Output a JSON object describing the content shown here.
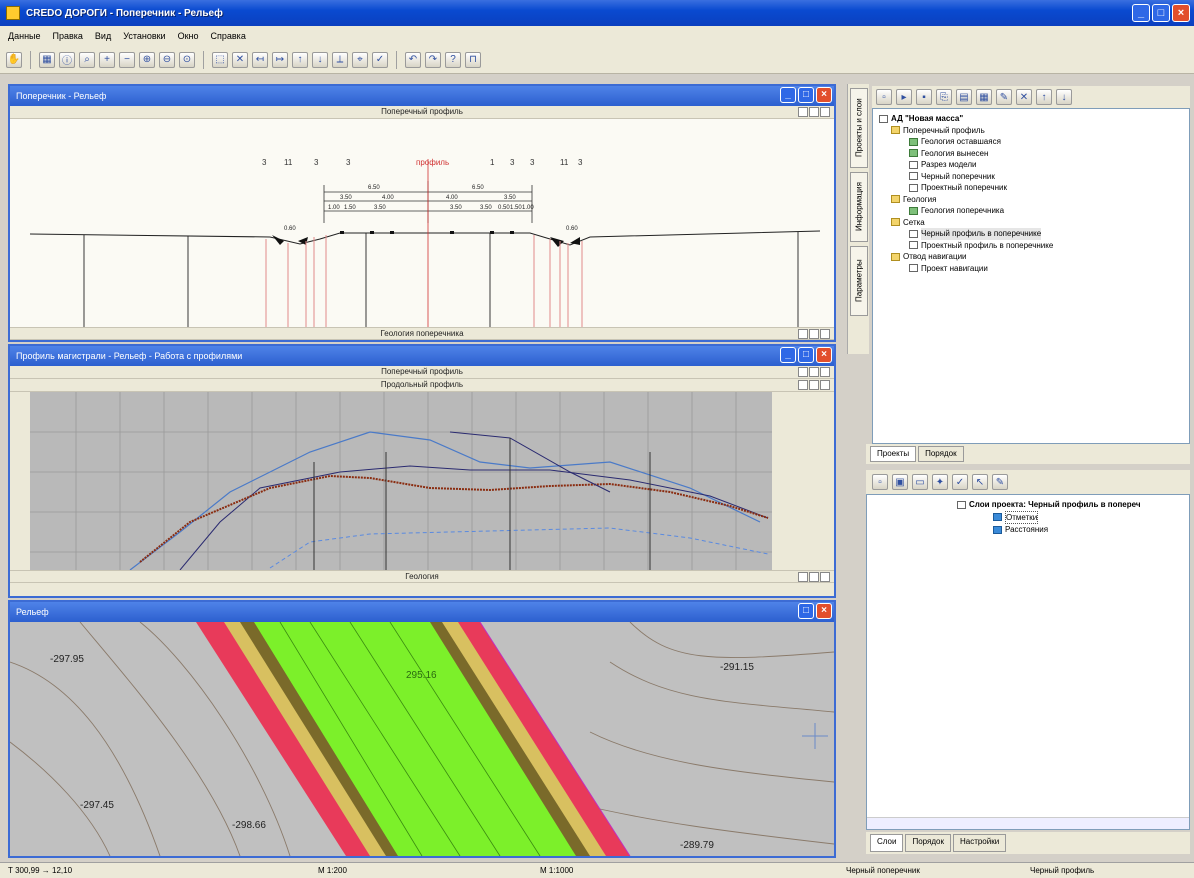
{
  "window": {
    "title": "CREDO ДОРОГИ - Поперечник - Рельеф"
  },
  "menu": [
    "Данные",
    "Правка",
    "Вид",
    "Установки",
    "Окно",
    "Справка"
  ],
  "cross_section": {
    "title": "Поперечник - Рельеф",
    "top_stripe": "Поперечный профиль",
    "bottom_stripe": "Геология поперечника",
    "marker_labels": [
      "3",
      "11",
      "3",
      "3",
      "профиль",
      "1",
      "3",
      "3",
      "11",
      "3"
    ],
    "dims_top": [
      "6.50",
      "6.50"
    ],
    "dims_mid": [
      "3.50",
      "4.00",
      "4.00",
      "3.50"
    ],
    "dims_low": [
      "1.00",
      "1.50",
      "3.50",
      "3.50",
      "3.50",
      "0.50",
      "1.50",
      "1.00"
    ],
    "dims_side": [
      "0.60",
      "0.60"
    ]
  },
  "profile": {
    "title": "Профиль магистрали - Рельеф - Работа с профилями",
    "stripe1": "Поперечный профиль",
    "stripe2": "Продольный профиль",
    "bottom_stripe": "Геология"
  },
  "relief": {
    "title": "Рельеф",
    "elevations": [
      "-297.95",
      "-291.15",
      "-297.45",
      "-298.66",
      "-289.79",
      "295.16"
    ]
  },
  "side_tabs": [
    "Проекты и слои",
    "Информация",
    "Параметры"
  ],
  "project_tree": {
    "root": "АД \"Новая масса\"",
    "items": [
      {
        "label": "Поперечный профиль",
        "level": 1,
        "icon": "folder"
      },
      {
        "label": "Геология оставшаяся",
        "level": 2,
        "icon": "layer"
      },
      {
        "label": "Геология вынесен",
        "level": 2,
        "icon": "layer"
      },
      {
        "label": "Разрез модели",
        "level": 2,
        "icon": "doc"
      },
      {
        "label": "Черный поперечник",
        "level": 2,
        "icon": "doc"
      },
      {
        "label": "Проектный поперечник",
        "level": 2,
        "icon": "doc"
      },
      {
        "label": "Геология",
        "level": 1,
        "icon": "folder"
      },
      {
        "label": "Геология поперечника",
        "level": 2,
        "icon": "layer"
      },
      {
        "label": "Сетка",
        "level": 1,
        "icon": "folder"
      },
      {
        "label": "Черный профиль в поперечнике",
        "level": 2,
        "icon": "doc"
      },
      {
        "label": "Проектный профиль в поперечнике",
        "level": 2,
        "icon": "doc"
      },
      {
        "label": "Отвод навигации",
        "level": 1,
        "icon": "folder"
      },
      {
        "label": "Проект навигации",
        "level": 2,
        "icon": "doc"
      }
    ]
  },
  "tabs_top": [
    "Проекты",
    "Порядок"
  ],
  "layers_tree": {
    "root": "Слои проекта: Черный профиль в попереч",
    "items": [
      "Отметки",
      "Расстояния"
    ]
  },
  "tabs_bottom": [
    "Слои",
    "Порядок",
    "Настройки"
  ],
  "status": {
    "coords": "Т 300,99  → 12,10",
    "scale1": "М 1:200",
    "scale2": "М 1:1000",
    "layer1": "Черный поперечник",
    "layer2": "Черный профиль"
  },
  "colors": {
    "title_blue": "#0a4ad0",
    "road_green": "#7cf02a",
    "slope_red": "#e83a5a",
    "relief_bg": "#c0c0c0",
    "profile_bg": "#b8b8b8"
  }
}
